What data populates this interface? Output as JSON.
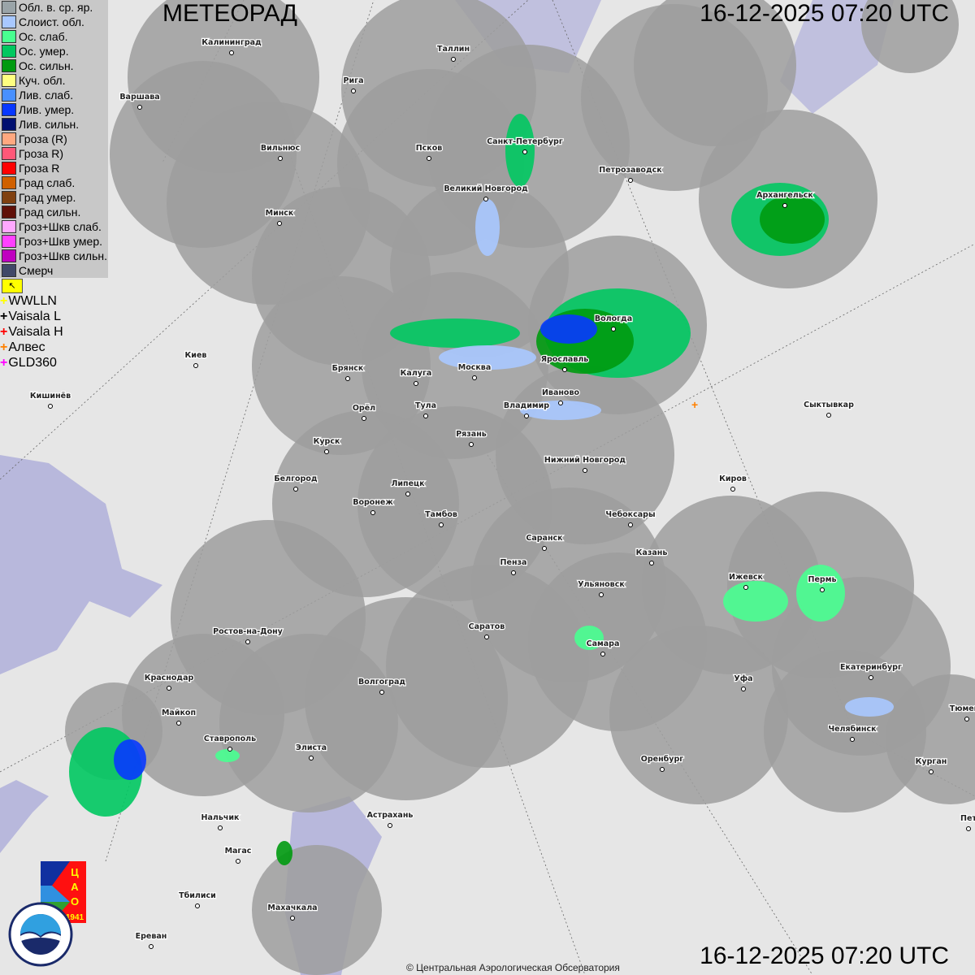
{
  "header": {
    "title": "МЕТЕОРАД",
    "timestamp": "16-12-2025  07:20 UTC"
  },
  "legend": {
    "items": [
      {
        "label": "Обл. в. ср. яр.",
        "color": "#9aa4a8"
      },
      {
        "label": "Слоист. обл.",
        "color": "#a8c8ff"
      },
      {
        "label": "Ос. слаб.",
        "color": "#48ff90"
      },
      {
        "label": "Ос. умер.",
        "color": "#00c860"
      },
      {
        "label": "Ос. сильн.",
        "color": "#009a10"
      },
      {
        "label": "Куч. обл.",
        "color": "#ffff80"
      },
      {
        "label": "Лив. слаб.",
        "color": "#4890ff"
      },
      {
        "label": "Лив. умер.",
        "color": "#0838ff"
      },
      {
        "label": "Лив. сильн.",
        "color": "#001070"
      },
      {
        "label": "Гроза (R)",
        "color": "#ffa880"
      },
      {
        "label": "Гроза R)",
        "color": "#ff5878"
      },
      {
        "label": "Гроза R",
        "color": "#ff0000"
      },
      {
        "label": "Град слаб.",
        "color": "#d06000"
      },
      {
        "label": "Град умер.",
        "color": "#804010"
      },
      {
        "label": "Град сильн.",
        "color": "#601008"
      },
      {
        "label": "Гроз+Шкв слаб.",
        "color": "#ffa8ff"
      },
      {
        "label": "Гроз+Шкв умер.",
        "color": "#ff40ff"
      },
      {
        "label": "Гроз+Шкв сильн.",
        "color": "#c000c0"
      },
      {
        "label": "Смерч",
        "color": "#404868"
      }
    ],
    "flag_icon": "cursor-flag-icon",
    "lightning": [
      {
        "label": "WWLLN",
        "color": "#ffff00"
      },
      {
        "label": "Vaisala L",
        "color": "#000000"
      },
      {
        "label": "Vaisala H",
        "color": "#ff0000"
      },
      {
        "label": "Алвес",
        "color": "#ff8000"
      },
      {
        "label": "GLD360",
        "color": "#ff00ff"
      }
    ]
  },
  "cities": [
    "Калининград",
    "Таллин",
    "Рига",
    "Варшава",
    "Вильнюс",
    "Псков",
    "Санкт-Петербург",
    "Петрозаводск",
    "Архангельск",
    "Великий Новгород",
    "Минск",
    "Вологда",
    "Ярославль",
    "Киев",
    "Брянск",
    "Калуга",
    "Москва",
    "Иваново",
    "Кишинёв",
    "Орёл",
    "Тула",
    "Владимир",
    "Сыктывкар",
    "Рязань",
    "Курск",
    "Нижний Новгород",
    "Белгород",
    "Липецк",
    "Киров",
    "Воронеж",
    "Тамбов",
    "Чебоксары",
    "Саранск",
    "Пенза",
    "Казань",
    "Ижевск",
    "Пермь",
    "Ульяновск",
    "Ростов-на-Дону",
    "Саратов",
    "Самара",
    "Краснодар",
    "Уфа",
    "Волгоград",
    "Екатеринбург",
    "Майкоп",
    "Тюмень",
    "Челябинск",
    "Ставрополь",
    "Элиста",
    "Оренбург",
    "Курган",
    "Нальчик",
    "Астрахань",
    "Пет",
    "Магас",
    "Тбилиси",
    "Махачкала",
    "Ереван"
  ],
  "logos": {
    "cao": "ЦАО 1941",
    "roshydromet": "РОСГИДРОМЕТ ROSHYDROMET"
  },
  "footer": {
    "copyright": "© Центральная Аэрологическая Обсерватория"
  },
  "colors": {
    "radar_coverage": "#a0a0a0",
    "land": "#e6e6e6",
    "water": "#b4b4d8"
  }
}
